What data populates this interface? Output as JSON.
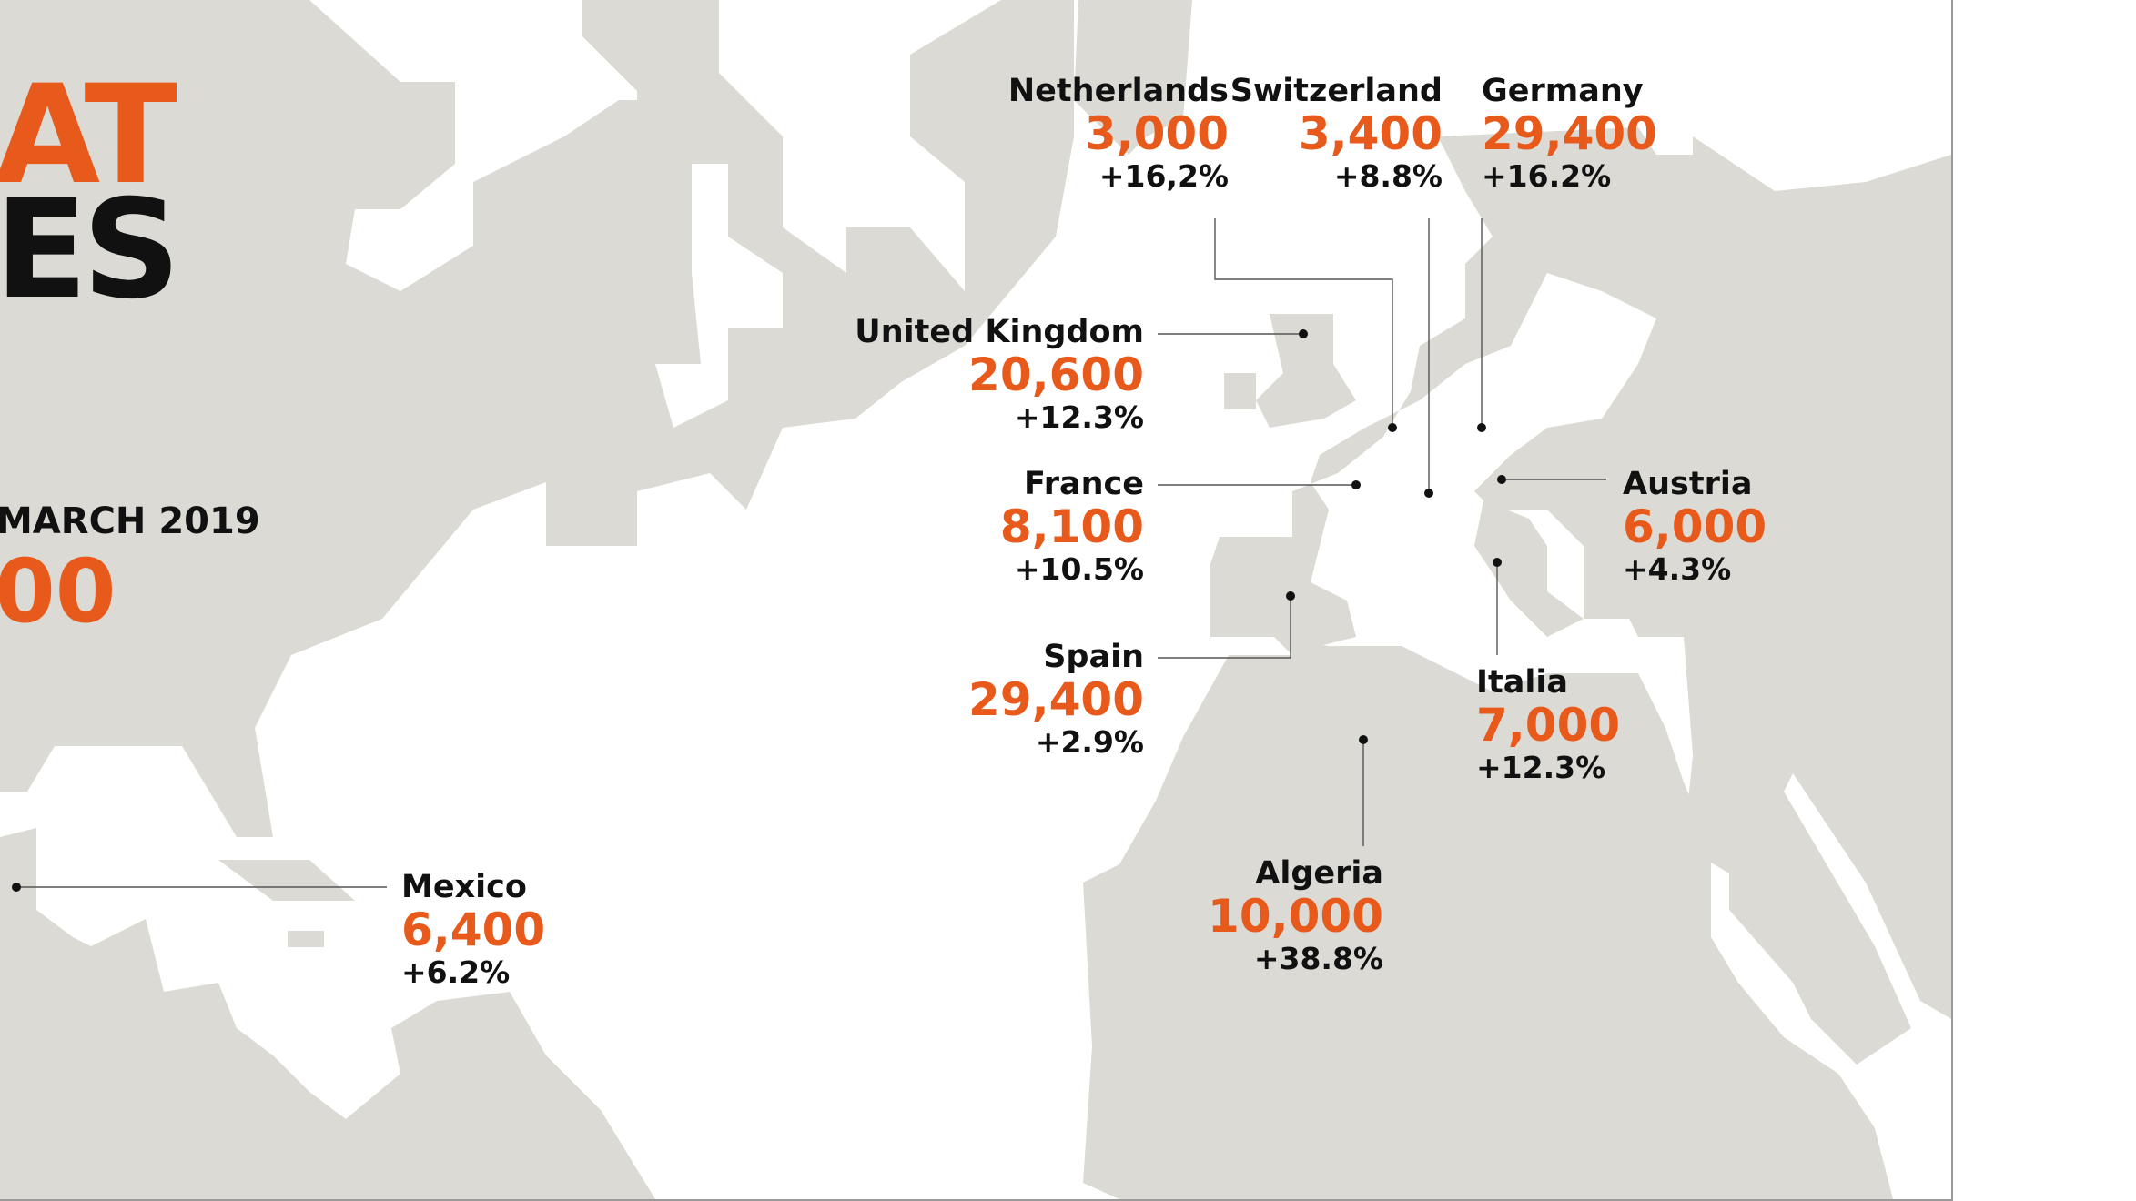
{
  "header": {
    "title_line_1": "AT",
    "title_line_2": "ES",
    "period": "MARCH 2019",
    "total": "00"
  },
  "colors": {
    "land": "#dcdad5",
    "accent": "#e85a1b",
    "text": "#111111",
    "background": "#ffffff"
  },
  "countries": {
    "netherlands": {
      "name": "Netherlands",
      "value": "3,000",
      "change": "+16,2%"
    },
    "switzerland": {
      "name": "Switzerland",
      "value": "3,400",
      "change": "+8.8%"
    },
    "germany": {
      "name": "Germany",
      "value": "29,400",
      "change": "+16.2%"
    },
    "united_kingdom": {
      "name": "United Kingdom",
      "value": "20,600",
      "change": "+12.3%"
    },
    "france": {
      "name": "France",
      "value": "8,100",
      "change": "+10.5%"
    },
    "austria": {
      "name": "Austria",
      "value": "6,000",
      "change": "+4.3%"
    },
    "spain": {
      "name": "Spain",
      "value": "29,400",
      "change": "+2.9%"
    },
    "italia": {
      "name": "Italia",
      "value": "7,000",
      "change": "+12.3%"
    },
    "algeria": {
      "name": "Algeria",
      "value": "10,000",
      "change": "+38.8%"
    },
    "mexico": {
      "name": "Mexico",
      "value": "6,400",
      "change": "+6.2%"
    }
  }
}
